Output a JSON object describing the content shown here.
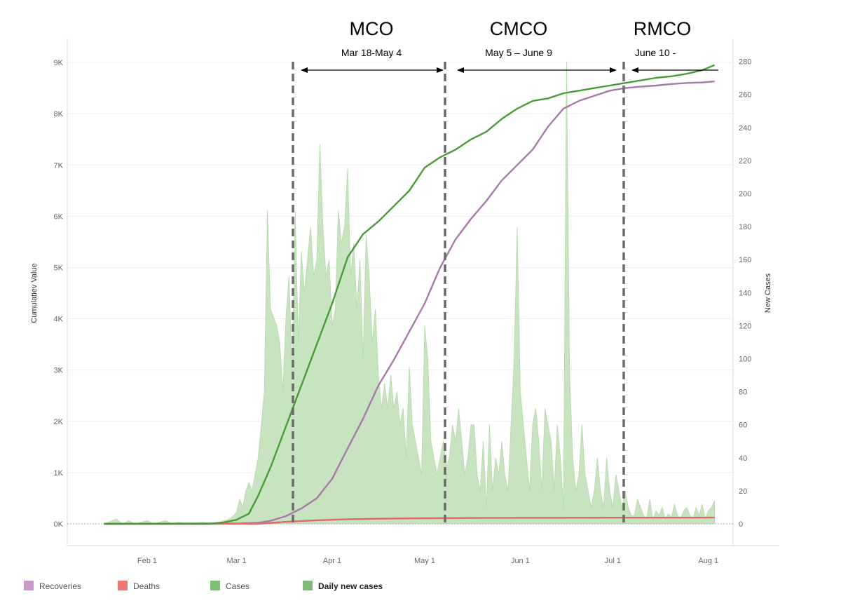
{
  "chart_data": {
    "type": "line",
    "title": "",
    "ylabel": "Cumulatiev Value",
    "y2label": "New Cases",
    "ylim": [
      0,
      9000
    ],
    "y2lim": [
      0,
      280
    ],
    "x_ticks": [
      {
        "label": "Feb 1",
        "day": 0
      },
      {
        "label": "Mar 1",
        "day": 29
      },
      {
        "label": "Apr 1",
        "day": 60
      },
      {
        "label": "May 1",
        "day": 90
      },
      {
        "label": "Jun 1",
        "day": 121
      },
      {
        "label": "Jul 1",
        "day": 151
      },
      {
        "label": "Aug 1",
        "day": 182
      }
    ],
    "y_ticks": [
      {
        "label": "0K",
        "value": 0
      },
      {
        "label": "1K",
        "value": 1000
      },
      {
        "label": "2K",
        "value": 2000
      },
      {
        "label": "3K",
        "value": 3000
      },
      {
        "label": "4K",
        "value": 4000
      },
      {
        "label": "5K",
        "value": 5000
      },
      {
        "label": "6K",
        "value": 6000
      },
      {
        "label": "7K",
        "value": 7000
      },
      {
        "label": "8K",
        "value": 8000
      },
      {
        "label": "9K",
        "value": 9000
      }
    ],
    "y2_ticks": [
      {
        "label": "0",
        "value": 0
      },
      {
        "label": "20",
        "value": 20
      },
      {
        "label": "40",
        "value": 40
      },
      {
        "label": "60",
        "value": 60
      },
      {
        "label": "80",
        "value": 80
      },
      {
        "label": "100",
        "value": 100
      },
      {
        "label": "120",
        "value": 120
      },
      {
        "label": "140",
        "value": 140
      },
      {
        "label": "160",
        "value": 160
      },
      {
        "label": "180",
        "value": 180
      },
      {
        "label": "200",
        "value": 200
      },
      {
        "label": "220",
        "value": 220
      },
      {
        "label": "240",
        "value": 240
      },
      {
        "label": "260",
        "value": 260
      },
      {
        "label": "280",
        "value": 280
      }
    ],
    "phases": [
      {
        "name": "MCO",
        "range": "Mar 18-May 4"
      },
      {
        "name": "CMCO",
        "range": "May 5 – June 9"
      },
      {
        "name": "RMCO",
        "range": "June 10 -"
      }
    ],
    "series": [
      {
        "name": "Recoveries",
        "color": "#a67aa8",
        "axis": "left",
        "type": "line",
        "x": [
          -14,
          30,
          36,
          40,
          45,
          50,
          55,
          60,
          65,
          70,
          75,
          80,
          85,
          90,
          95,
          100,
          105,
          110,
          115,
          120,
          125,
          130,
          135,
          140,
          145,
          150,
          155,
          160,
          165,
          170,
          175,
          180,
          184
        ],
        "y": [
          0,
          10,
          20,
          60,
          150,
          300,
          500,
          880,
          1470,
          2050,
          2700,
          3200,
          3750,
          4300,
          5000,
          5550,
          5950,
          6300,
          6700,
          7000,
          7300,
          7750,
          8100,
          8250,
          8350,
          8450,
          8500,
          8530,
          8550,
          8580,
          8600,
          8610,
          8630
        ]
      },
      {
        "name": "Deaths",
        "color": "#e06a6a",
        "axis": "left",
        "type": "line",
        "x": [
          -14,
          36,
          45,
          55,
          65,
          75,
          90,
          110,
          130,
          150,
          184
        ],
        "y": [
          0,
          0,
          40,
          70,
          90,
          100,
          110,
          115,
          118,
          120,
          122
        ]
      },
      {
        "name": "Cases",
        "color": "#4a9a3a",
        "axis": "left",
        "type": "line",
        "x": [
          -14,
          20,
          25,
          29,
          33,
          36,
          40,
          45,
          50,
          55,
          60,
          65,
          70,
          75,
          80,
          85,
          90,
          95,
          100,
          105,
          110,
          115,
          120,
          125,
          130,
          135,
          140,
          145,
          150,
          155,
          160,
          165,
          170,
          175,
          180,
          184
        ],
        "y": [
          0,
          0,
          30,
          80,
          200,
          550,
          1100,
          1900,
          2700,
          3500,
          4300,
          5200,
          5650,
          5900,
          6200,
          6500,
          6950,
          7150,
          7300,
          7500,
          7650,
          7900,
          8100,
          8250,
          8300,
          8400,
          8450,
          8500,
          8550,
          8600,
          8650,
          8700,
          8730,
          8780,
          8850,
          8950
        ]
      },
      {
        "name": "Daily new cases",
        "color": "#8cc47e",
        "axis": "right",
        "type": "area",
        "x": [
          -14,
          -10,
          -8,
          -6,
          -4,
          -2,
          0,
          2,
          4,
          6,
          8,
          10,
          14,
          18,
          22,
          25,
          27,
          29,
          30,
          31,
          32,
          33,
          34,
          35,
          36,
          37,
          38,
          39,
          40,
          41,
          42,
          43,
          44,
          45,
          46,
          47,
          48,
          49,
          50,
          51,
          52,
          53,
          54,
          55,
          56,
          57,
          58,
          59,
          60,
          61,
          62,
          63,
          64,
          65,
          66,
          67,
          68,
          69,
          70,
          71,
          72,
          73,
          74,
          75,
          76,
          77,
          78,
          79,
          80,
          81,
          82,
          83,
          84,
          85,
          86,
          87,
          88,
          89,
          90,
          91,
          92,
          93,
          94,
          95,
          96,
          97,
          98,
          99,
          100,
          101,
          102,
          103,
          104,
          105,
          106,
          107,
          108,
          109,
          110,
          111,
          112,
          113,
          114,
          115,
          116,
          117,
          118,
          119,
          120,
          121,
          122,
          123,
          124,
          125,
          126,
          127,
          128,
          129,
          130,
          131,
          132,
          133,
          134,
          135,
          136,
          137,
          138,
          139,
          140,
          141,
          142,
          143,
          144,
          145,
          146,
          147,
          148,
          149,
          150,
          151,
          152,
          153,
          154,
          155,
          156,
          157,
          158,
          159,
          160,
          161,
          162,
          163,
          164,
          165,
          166,
          167,
          168,
          169,
          170,
          171,
          172,
          173,
          174,
          175,
          176,
          177,
          178,
          179,
          180,
          181,
          182,
          183,
          184
        ],
        "y": [
          0,
          3,
          0,
          2,
          0,
          1,
          2,
          0,
          1,
          2,
          0,
          1,
          0,
          1,
          0,
          2,
          3,
          7,
          15,
          10,
          20,
          25,
          20,
          30,
          40,
          60,
          80,
          190,
          130,
          125,
          120,
          110,
          80,
          125,
          150,
          90,
          190,
          110,
          165,
          140,
          160,
          180,
          150,
          160,
          230,
          180,
          150,
          160,
          120,
          130,
          190,
          170,
          180,
          215,
          150,
          170,
          130,
          160,
          100,
          175,
          150,
          110,
          130,
          90,
          70,
          85,
          70,
          90,
          70,
          80,
          60,
          70,
          40,
          95,
          60,
          50,
          40,
          30,
          120,
          100,
          50,
          40,
          30,
          40,
          50,
          35,
          40,
          60,
          50,
          70,
          50,
          30,
          40,
          60,
          60,
          30,
          20,
          50,
          10,
          60,
          20,
          40,
          30,
          50,
          30,
          20,
          60,
          100,
          180,
          80,
          60,
          40,
          20,
          60,
          70,
          50,
          20,
          70,
          60,
          50,
          20,
          60,
          40,
          10,
          280,
          90,
          40,
          20,
          30,
          60,
          30,
          20,
          10,
          20,
          40,
          20,
          10,
          40,
          20,
          10,
          30,
          20,
          10,
          20,
          10,
          5,
          5,
          15,
          10,
          5,
          3,
          15,
          2,
          8,
          5,
          10,
          3,
          6,
          4,
          12,
          5,
          3,
          8,
          10,
          5,
          3,
          10,
          5,
          12,
          3,
          8,
          10,
          14
        ]
      }
    ],
    "legend": {
      "position": "bottom-left",
      "items": [
        {
          "label": "Recoveries",
          "color": "#c79ac9"
        },
        {
          "label": "Deaths",
          "color": "#ec7878"
        },
        {
          "label": "Cases",
          "color": "#7fbf76"
        },
        {
          "label": "Daily new cases",
          "color": "#7fb979"
        }
      ]
    }
  }
}
